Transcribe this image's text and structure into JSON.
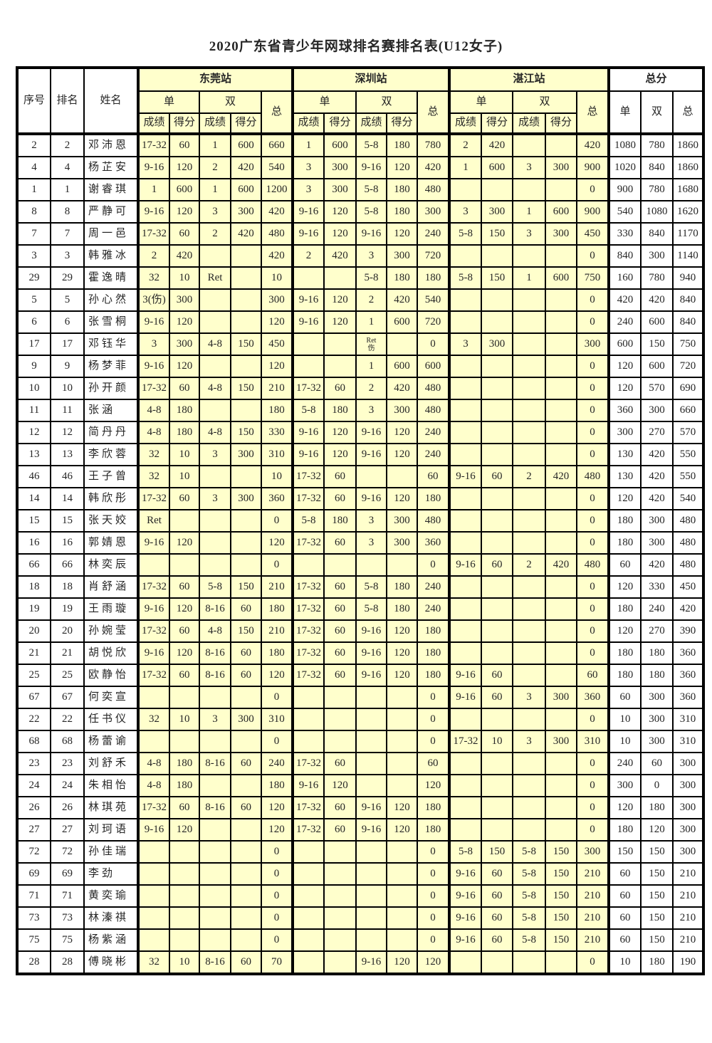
{
  "page": {
    "title": "2020广东省青少年网球排名赛排名表(U12女子)"
  },
  "header": {
    "serial": "序号",
    "rank": "排名",
    "name": "姓名",
    "stations": [
      "东莞站",
      "深圳站",
      "湛江站"
    ],
    "total_section": "总分",
    "singles": "单",
    "doubles": "双",
    "total": "总",
    "result": "成绩",
    "points": "得分"
  },
  "colors": {
    "station_cell_fill": "#FFFFCC",
    "plain_cell_fill": "#FFFFFF",
    "border": "#000000",
    "text": "#262626"
  },
  "rows": [
    {
      "serial": "2",
      "rank": "2",
      "name": "邓沛恩",
      "dongguan": [
        "17-32",
        "60",
        "1",
        "600",
        "660"
      ],
      "shenzhen": [
        "1",
        "600",
        "5-8",
        "180",
        "780"
      ],
      "zhanjiang": [
        "2",
        "420",
        "",
        "",
        "420"
      ],
      "totals": [
        "1080",
        "780",
        "1860"
      ]
    },
    {
      "serial": "4",
      "rank": "4",
      "name": "杨芷安",
      "dongguan": [
        "9-16",
        "120",
        "2",
        "420",
        "540"
      ],
      "shenzhen": [
        "3",
        "300",
        "9-16",
        "120",
        "420"
      ],
      "zhanjiang": [
        "1",
        "600",
        "3",
        "300",
        "900"
      ],
      "totals": [
        "1020",
        "840",
        "1860"
      ]
    },
    {
      "serial": "1",
      "rank": "1",
      "name": "谢睿琪",
      "dongguan": [
        "1",
        "600",
        "1",
        "600",
        "1200"
      ],
      "shenzhen": [
        "3",
        "300",
        "5-8",
        "180",
        "480"
      ],
      "zhanjiang": [
        "",
        "",
        "",
        "",
        "0"
      ],
      "totals": [
        "900",
        "780",
        "1680"
      ]
    },
    {
      "serial": "8",
      "rank": "8",
      "name": "严静可",
      "dongguan": [
        "9-16",
        "120",
        "3",
        "300",
        "420"
      ],
      "shenzhen": [
        "9-16",
        "120",
        "5-8",
        "180",
        "300"
      ],
      "zhanjiang": [
        "3",
        "300",
        "1",
        "600",
        "900"
      ],
      "totals": [
        "540",
        "1080",
        "1620"
      ]
    },
    {
      "serial": "7",
      "rank": "7",
      "name": "周一邑",
      "dongguan": [
        "17-32",
        "60",
        "2",
        "420",
        "480"
      ],
      "shenzhen": [
        "9-16",
        "120",
        "9-16",
        "120",
        "240"
      ],
      "zhanjiang": [
        "5-8",
        "150",
        "3",
        "300",
        "450"
      ],
      "totals": [
        "330",
        "840",
        "1170"
      ]
    },
    {
      "serial": "3",
      "rank": "3",
      "name": "韩雅冰",
      "dongguan": [
        "2",
        "420",
        "",
        "",
        "420"
      ],
      "shenzhen": [
        "2",
        "420",
        "3",
        "300",
        "720"
      ],
      "zhanjiang": [
        "",
        "",
        "",
        "",
        "0"
      ],
      "totals": [
        "840",
        "300",
        "1140"
      ]
    },
    {
      "serial": "29",
      "rank": "29",
      "name": "霍逸晴",
      "dongguan": [
        "32",
        "10",
        "Ret",
        "",
        "10"
      ],
      "shenzhen": [
        "",
        "",
        "5-8",
        "180",
        "180"
      ],
      "zhanjiang": [
        "5-8",
        "150",
        "1",
        "600",
        "750"
      ],
      "totals": [
        "160",
        "780",
        "940"
      ]
    },
    {
      "serial": "5",
      "rank": "5",
      "name": "孙心然",
      "dongguan": [
        "3(伤)",
        "300",
        "",
        "",
        "300"
      ],
      "shenzhen": [
        "9-16",
        "120",
        "2",
        "420",
        "540"
      ],
      "zhanjiang": [
        "",
        "",
        "",
        "",
        "0"
      ],
      "totals": [
        "420",
        "420",
        "840"
      ]
    },
    {
      "serial": "6",
      "rank": "6",
      "name": "张雪桐",
      "dongguan": [
        "9-16",
        "120",
        "",
        "",
        "120"
      ],
      "shenzhen": [
        "9-16",
        "120",
        "1",
        "600",
        "720"
      ],
      "zhanjiang": [
        "",
        "",
        "",
        "",
        "0"
      ],
      "totals": [
        "240",
        "600",
        "840"
      ]
    },
    {
      "serial": "17",
      "rank": "17",
      "name": "邓钰华",
      "dongguan": [
        "3",
        "300",
        "4-8",
        "150",
        "450"
      ],
      "shenzhen": [
        "",
        "",
        "Ret\n伤",
        "",
        "0"
      ],
      "zhanjiang": [
        "3",
        "300",
        "",
        "",
        "300"
      ],
      "totals": [
        "600",
        "150",
        "750"
      ]
    },
    {
      "serial": "9",
      "rank": "9",
      "name": "杨梦菲",
      "dongguan": [
        "9-16",
        "120",
        "",
        "",
        "120"
      ],
      "shenzhen": [
        "",
        "",
        "1",
        "600",
        "600"
      ],
      "zhanjiang": [
        "",
        "",
        "",
        "",
        "0"
      ],
      "totals": [
        "120",
        "600",
        "720"
      ]
    },
    {
      "serial": "10",
      "rank": "10",
      "name": "孙开颜",
      "dongguan": [
        "17-32",
        "60",
        "4-8",
        "150",
        "210"
      ],
      "shenzhen": [
        "17-32",
        "60",
        "2",
        "420",
        "480"
      ],
      "zhanjiang": [
        "",
        "",
        "",
        "",
        "0"
      ],
      "totals": [
        "120",
        "570",
        "690"
      ]
    },
    {
      "serial": "11",
      "rank": "11",
      "name": "张涵",
      "dongguan": [
        "4-8",
        "180",
        "",
        "",
        "180"
      ],
      "shenzhen": [
        "5-8",
        "180",
        "3",
        "300",
        "480"
      ],
      "zhanjiang": [
        "",
        "",
        "",
        "",
        "0"
      ],
      "totals": [
        "360",
        "300",
        "660"
      ]
    },
    {
      "serial": "12",
      "rank": "12",
      "name": "简丹丹",
      "dongguan": [
        "4-8",
        "180",
        "4-8",
        "150",
        "330"
      ],
      "shenzhen": [
        "9-16",
        "120",
        "9-16",
        "120",
        "240"
      ],
      "zhanjiang": [
        "",
        "",
        "",
        "",
        "0"
      ],
      "totals": [
        "300",
        "270",
        "570"
      ]
    },
    {
      "serial": "13",
      "rank": "13",
      "name": "李欣蓉",
      "dongguan": [
        "32",
        "10",
        "3",
        "300",
        "310"
      ],
      "shenzhen": [
        "9-16",
        "120",
        "9-16",
        "120",
        "240"
      ],
      "zhanjiang": [
        "",
        "",
        "",
        "",
        "0"
      ],
      "totals": [
        "130",
        "420",
        "550"
      ]
    },
    {
      "serial": "46",
      "rank": "46",
      "name": "王子曾",
      "dongguan": [
        "32",
        "10",
        "",
        "",
        "10"
      ],
      "shenzhen": [
        "17-32",
        "60",
        "",
        "",
        "60"
      ],
      "zhanjiang": [
        "9-16",
        "60",
        "2",
        "420",
        "480"
      ],
      "totals": [
        "130",
        "420",
        "550"
      ]
    },
    {
      "serial": "14",
      "rank": "14",
      "name": "韩欣彤",
      "dongguan": [
        "17-32",
        "60",
        "3",
        "300",
        "360"
      ],
      "shenzhen": [
        "17-32",
        "60",
        "9-16",
        "120",
        "180"
      ],
      "zhanjiang": [
        "",
        "",
        "",
        "",
        "0"
      ],
      "totals": [
        "120",
        "420",
        "540"
      ]
    },
    {
      "serial": "15",
      "rank": "15",
      "name": "张天姣",
      "dongguan": [
        "Ret",
        "",
        "",
        "",
        "0"
      ],
      "shenzhen": [
        "5-8",
        "180",
        "3",
        "300",
        "480"
      ],
      "zhanjiang": [
        "",
        "",
        "",
        "",
        "0"
      ],
      "totals": [
        "180",
        "300",
        "480"
      ]
    },
    {
      "serial": "16",
      "rank": "16",
      "name": "郭婧恩",
      "dongguan": [
        "9-16",
        "120",
        "",
        "",
        "120"
      ],
      "shenzhen": [
        "17-32",
        "60",
        "3",
        "300",
        "360"
      ],
      "zhanjiang": [
        "",
        "",
        "",
        "",
        "0"
      ],
      "totals": [
        "180",
        "300",
        "480"
      ]
    },
    {
      "serial": "66",
      "rank": "66",
      "name": "林奕辰",
      "dongguan": [
        "",
        "",
        "",
        "",
        "0"
      ],
      "shenzhen": [
        "",
        "",
        "",
        "",
        "0"
      ],
      "zhanjiang": [
        "9-16",
        "60",
        "2",
        "420",
        "480"
      ],
      "totals": [
        "60",
        "420",
        "480"
      ]
    },
    {
      "serial": "18",
      "rank": "18",
      "name": "肖舒涵",
      "dongguan": [
        "17-32",
        "60",
        "5-8",
        "150",
        "210"
      ],
      "shenzhen": [
        "17-32",
        "60",
        "5-8",
        "180",
        "240"
      ],
      "zhanjiang": [
        "",
        "",
        "",
        "",
        "0"
      ],
      "totals": [
        "120",
        "330",
        "450"
      ]
    },
    {
      "serial": "19",
      "rank": "19",
      "name": "王雨璇",
      "dongguan": [
        "9-16",
        "120",
        "8-16",
        "60",
        "180"
      ],
      "shenzhen": [
        "17-32",
        "60",
        "5-8",
        "180",
        "240"
      ],
      "zhanjiang": [
        "",
        "",
        "",
        "",
        "0"
      ],
      "totals": [
        "180",
        "240",
        "420"
      ]
    },
    {
      "serial": "20",
      "rank": "20",
      "name": "孙婉莹",
      "dongguan": [
        "17-32",
        "60",
        "4-8",
        "150",
        "210"
      ],
      "shenzhen": [
        "17-32",
        "60",
        "9-16",
        "120",
        "180"
      ],
      "zhanjiang": [
        "",
        "",
        "",
        "",
        "0"
      ],
      "totals": [
        "120",
        "270",
        "390"
      ]
    },
    {
      "serial": "21",
      "rank": "21",
      "name": "胡悦欣",
      "dongguan": [
        "9-16",
        "120",
        "8-16",
        "60",
        "180"
      ],
      "shenzhen": [
        "17-32",
        "60",
        "9-16",
        "120",
        "180"
      ],
      "zhanjiang": [
        "",
        "",
        "",
        "",
        "0"
      ],
      "totals": [
        "180",
        "180",
        "360"
      ]
    },
    {
      "serial": "25",
      "rank": "25",
      "name": "欧静怡",
      "dongguan": [
        "17-32",
        "60",
        "8-16",
        "60",
        "120"
      ],
      "shenzhen": [
        "17-32",
        "60",
        "9-16",
        "120",
        "180"
      ],
      "zhanjiang": [
        "9-16",
        "60",
        "",
        "",
        "60"
      ],
      "totals": [
        "180",
        "180",
        "360"
      ]
    },
    {
      "serial": "67",
      "rank": "67",
      "name": "何奕宣",
      "dongguan": [
        "",
        "",
        "",
        "",
        "0"
      ],
      "shenzhen": [
        "",
        "",
        "",
        "",
        "0"
      ],
      "zhanjiang": [
        "9-16",
        "60",
        "3",
        "300",
        "360"
      ],
      "totals": [
        "60",
        "300",
        "360"
      ]
    },
    {
      "serial": "22",
      "rank": "22",
      "name": "任书仪",
      "dongguan": [
        "32",
        "10",
        "3",
        "300",
        "310"
      ],
      "shenzhen": [
        "",
        "",
        "",
        "",
        "0"
      ],
      "zhanjiang": [
        "",
        "",
        "",
        "",
        "0"
      ],
      "totals": [
        "10",
        "300",
        "310"
      ]
    },
    {
      "serial": "68",
      "rank": "68",
      "name": "杨蕾谕",
      "dongguan": [
        "",
        "",
        "",
        "",
        "0"
      ],
      "shenzhen": [
        "",
        "",
        "",
        "",
        "0"
      ],
      "zhanjiang": [
        "17-32",
        "10",
        "3",
        "300",
        "310"
      ],
      "totals": [
        "10",
        "300",
        "310"
      ]
    },
    {
      "serial": "23",
      "rank": "23",
      "name": "刘舒禾",
      "dongguan": [
        "4-8",
        "180",
        "8-16",
        "60",
        "240"
      ],
      "shenzhen": [
        "17-32",
        "60",
        "",
        "",
        "60"
      ],
      "zhanjiang": [
        "",
        "",
        "",
        "",
        "0"
      ],
      "totals": [
        "240",
        "60",
        "300"
      ]
    },
    {
      "serial": "24",
      "rank": "24",
      "name": "朱相怡",
      "dongguan": [
        "4-8",
        "180",
        "",
        "",
        "180"
      ],
      "shenzhen": [
        "9-16",
        "120",
        "",
        "",
        "120"
      ],
      "zhanjiang": [
        "",
        "",
        "",
        "",
        "0"
      ],
      "totals": [
        "300",
        "0",
        "300"
      ]
    },
    {
      "serial": "26",
      "rank": "26",
      "name": "林琪苑",
      "dongguan": [
        "17-32",
        "60",
        "8-16",
        "60",
        "120"
      ],
      "shenzhen": [
        "17-32",
        "60",
        "9-16",
        "120",
        "180"
      ],
      "zhanjiang": [
        "",
        "",
        "",
        "",
        "0"
      ],
      "totals": [
        "120",
        "180",
        "300"
      ]
    },
    {
      "serial": "27",
      "rank": "27",
      "name": "刘珂语",
      "dongguan": [
        "9-16",
        "120",
        "",
        "",
        "120"
      ],
      "shenzhen": [
        "17-32",
        "60",
        "9-16",
        "120",
        "180"
      ],
      "zhanjiang": [
        "",
        "",
        "",
        "",
        "0"
      ],
      "totals": [
        "180",
        "120",
        "300"
      ]
    },
    {
      "serial": "72",
      "rank": "72",
      "name": "孙佳瑞",
      "dongguan": [
        "",
        "",
        "",
        "",
        "0"
      ],
      "shenzhen": [
        "",
        "",
        "",
        "",
        "0"
      ],
      "zhanjiang": [
        "5-8",
        "150",
        "5-8",
        "150",
        "300"
      ],
      "totals": [
        "150",
        "150",
        "300"
      ]
    },
    {
      "serial": "69",
      "rank": "69",
      "name": "李劲",
      "dongguan": [
        "",
        "",
        "",
        "",
        "0"
      ],
      "shenzhen": [
        "",
        "",
        "",
        "",
        "0"
      ],
      "zhanjiang": [
        "9-16",
        "60",
        "5-8",
        "150",
        "210"
      ],
      "totals": [
        "60",
        "150",
        "210"
      ]
    },
    {
      "serial": "71",
      "rank": "71",
      "name": "黄奕瑜",
      "dongguan": [
        "",
        "",
        "",
        "",
        "0"
      ],
      "shenzhen": [
        "",
        "",
        "",
        "",
        "0"
      ],
      "zhanjiang": [
        "9-16",
        "60",
        "5-8",
        "150",
        "210"
      ],
      "totals": [
        "60",
        "150",
        "210"
      ]
    },
    {
      "serial": "73",
      "rank": "73",
      "name": "林溱祺",
      "dongguan": [
        "",
        "",
        "",
        "",
        "0"
      ],
      "shenzhen": [
        "",
        "",
        "",
        "",
        "0"
      ],
      "zhanjiang": [
        "9-16",
        "60",
        "5-8",
        "150",
        "210"
      ],
      "totals": [
        "60",
        "150",
        "210"
      ]
    },
    {
      "serial": "75",
      "rank": "75",
      "name": "杨紫涵",
      "dongguan": [
        "",
        "",
        "",
        "",
        "0"
      ],
      "shenzhen": [
        "",
        "",
        "",
        "",
        "0"
      ],
      "zhanjiang": [
        "9-16",
        "60",
        "5-8",
        "150",
        "210"
      ],
      "totals": [
        "60",
        "150",
        "210"
      ]
    },
    {
      "serial": "28",
      "rank": "28",
      "name": "傅晓彬",
      "dongguan": [
        "32",
        "10",
        "8-16",
        "60",
        "70"
      ],
      "shenzhen": [
        "",
        "",
        "9-16",
        "120",
        "120"
      ],
      "zhanjiang": [
        "",
        "",
        "",
        "",
        "0"
      ],
      "totals": [
        "10",
        "180",
        "190"
      ]
    }
  ]
}
